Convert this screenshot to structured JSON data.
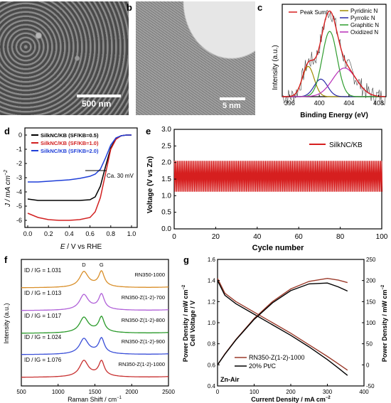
{
  "panel_a": {
    "letter": "a",
    "scale_bar": "500 nm"
  },
  "panel_b": {
    "letter": "b",
    "scale_bar": "5 nm"
  },
  "panel_c": {
    "letter": "c",
    "legend_left": [
      "Peak Sum"
    ],
    "legend_right": [
      "Pyridinic N",
      "Pyrrolic N",
      "Graphitic N",
      "Oxidized N"
    ],
    "colors": {
      "peak_sum": "#d61f1f",
      "pyridinic": "#a08a00",
      "pyrrolic": "#2a2aa8",
      "graphitic": "#2e9c2e",
      "oxidized": "#b82fb8",
      "raw": "#444444"
    }
  },
  "panel_d": {
    "letter": "d",
    "legend": [
      "SilkNC/KB (SF/KB=0.5)",
      "SilkNC/KB (SF/KB=1.0)",
      "SilkNC/KB (SF/KB=2.0)"
    ],
    "annotation": "Ca. 30 mV",
    "colors": [
      "#000000",
      "#d22020",
      "#1f3fd8"
    ]
  },
  "panel_e": {
    "letter": "e",
    "legend": "SilkNC/KB",
    "color": "#d61f1f"
  },
  "panel_f": {
    "letter": "f",
    "peak_labels": [
      "D",
      "G"
    ],
    "series": [
      {
        "name": "RN350-1000",
        "ratio": "1.031",
        "color": "#d98f2a"
      },
      {
        "name": "RN350-Z(1-2)-700",
        "ratio": "1.013",
        "color": "#b060d8"
      },
      {
        "name": "RN350-Z(1-2)-800",
        "ratio": "1.017",
        "color": "#2a9a2a"
      },
      {
        "name": "RN350-Z(1-2)-900",
        "ratio": "1.024",
        "color": "#3a4fd8"
      },
      {
        "name": "RN350-Z(1-2)-1000",
        "ratio": "1.076",
        "color": "#c83030"
      }
    ]
  },
  "panel_g": {
    "letter": "g",
    "legend": [
      "RN350-Z(1-2)-1000",
      "20% Pt/C"
    ],
    "annotation": "Zn-Air",
    "colors": [
      "#9b3a2a",
      "#000000"
    ]
  },
  "chart_data": [
    {
      "panel": "c",
      "type": "line",
      "xlabel": "Binding Energy (eV)",
      "ylabel": "Intensity (a.u.)",
      "xlim": [
        395,
        409
      ],
      "xticks": [
        396,
        400,
        404,
        408
      ],
      "x": [
        395,
        396,
        397,
        398,
        398.5,
        399,
        400,
        400.5,
        401,
        401.5,
        402,
        403,
        403.5,
        404,
        405,
        406,
        407,
        408,
        409
      ],
      "series": [
        {
          "name": "Peak Sum",
          "values": [
            0.02,
            0.05,
            0.2,
            0.45,
            0.55,
            0.5,
            0.6,
            0.8,
            0.95,
            0.98,
            0.85,
            0.55,
            0.45,
            0.38,
            0.25,
            0.14,
            0.07,
            0.03,
            0.01
          ]
        }
      ]
    },
    {
      "panel": "d",
      "type": "line",
      "xlabel": "E / V vs RHE",
      "ylabel": "J / mA cm-2",
      "xlim": [
        0.0,
        1.0
      ],
      "ylim": [
        -6.5,
        0.5
      ],
      "xticks": [
        "0.0",
        "0.2",
        "0.4",
        "0.6",
        "0.8",
        "1.0"
      ],
      "yticks": [
        "0",
        "-1",
        "-2",
        "-3",
        "-4",
        "-5",
        "-6"
      ],
      "x": [
        0.0,
        0.1,
        0.2,
        0.3,
        0.4,
        0.5,
        0.6,
        0.65,
        0.7,
        0.75,
        0.8,
        0.85,
        0.9,
        0.95,
        1.0
      ],
      "series": [
        {
          "name": "SilkNC/KB (SF/KB=0.5)",
          "values": [
            -4.5,
            -4.6,
            -4.6,
            -4.6,
            -4.6,
            -4.6,
            -4.55,
            -4.35,
            -3.6,
            -2.2,
            -0.9,
            -0.25,
            -0.05,
            0.0,
            0.0
          ]
        },
        {
          "name": "SilkNC/KB (SF/KB=1.0)",
          "values": [
            -5.5,
            -5.8,
            -5.95,
            -6.0,
            -6.0,
            -5.95,
            -5.8,
            -5.4,
            -4.4,
            -2.7,
            -1.0,
            -0.3,
            -0.05,
            0.0,
            0.0
          ]
        },
        {
          "name": "SilkNC/KB (SF/KB=2.0)",
          "values": [
            -3.3,
            -3.3,
            -3.25,
            -3.2,
            -3.15,
            -3.05,
            -2.9,
            -2.75,
            -2.4,
            -1.6,
            -0.7,
            -0.2,
            -0.05,
            0.0,
            0.0
          ]
        }
      ]
    },
    {
      "panel": "e",
      "type": "line",
      "xlabel": "Cycle number",
      "ylabel": "Voltage (V vs Zn)",
      "xlim": [
        0,
        100
      ],
      "ylim": [
        0.0,
        3.0
      ],
      "xticks": [
        "0",
        "20",
        "40",
        "60",
        "80",
        "100"
      ],
      "yticks": [
        "0.0",
        "0.5",
        "1.0",
        "1.5",
        "2.0",
        "2.5",
        "3.0"
      ],
      "series": [
        {
          "name": "SilkNC/KB",
          "charge_voltage": 2.05,
          "discharge_voltage": 1.12
        }
      ]
    },
    {
      "panel": "f",
      "type": "line",
      "xlabel": "Raman Shift / cm-1",
      "ylabel": "Intensity (a.u.)",
      "xlim": [
        500,
        2500
      ],
      "xticks": [
        "500",
        "1000",
        "1500",
        "2000",
        "2500"
      ],
      "peaks_cm-1": {
        "D": 1350,
        "G": 1590
      },
      "series": [
        {
          "name": "RN350-1000",
          "ID_IG": 1.031
        },
        {
          "name": "RN350-Z(1-2)-700",
          "ID_IG": 1.013
        },
        {
          "name": "RN350-Z(1-2)-800",
          "ID_IG": 1.017
        },
        {
          "name": "RN350-Z(1-2)-900",
          "ID_IG": 1.024
        },
        {
          "name": "RN350-Z(1-2)-1000",
          "ID_IG": 1.076
        }
      ]
    },
    {
      "panel": "g",
      "type": "line",
      "xlabel": "Current Density / mA cm-2",
      "ylabel": "Cell Voltage / V",
      "ylabel_right": "Power Density / mW cm-2",
      "xlim": [
        0,
        400
      ],
      "ylim": [
        0.4,
        1.6
      ],
      "ylim_right": [
        -50,
        250
      ],
      "xticks": [
        "0",
        "100",
        "200",
        "300",
        "400"
      ],
      "yticks": [
        "0.4",
        "0.6",
        "0.8",
        "1.0",
        "1.2",
        "1.4",
        "1.6"
      ],
      "yticks_right": [
        "-50",
        "0",
        "50",
        "100",
        "150",
        "200",
        "250"
      ],
      "x": [
        0,
        20,
        50,
        100,
        150,
        200,
        250,
        300,
        330,
        355
      ],
      "series": [
        {
          "name": "RN350-Z(1-2)-1000 voltage",
          "values": [
            1.42,
            1.28,
            1.2,
            1.1,
            1.0,
            0.9,
            0.79,
            0.68,
            0.61,
            0.55
          ]
        },
        {
          "name": "20% Pt/C voltage",
          "values": [
            1.4,
            1.26,
            1.18,
            1.08,
            0.98,
            0.88,
            0.77,
            0.65,
            0.57,
            0.5
          ]
        },
        {
          "name": "RN350-Z(1-2)-1000 power",
          "values": [
            0,
            26,
            60,
            110,
            150,
            180,
            198,
            205,
            201,
            195
          ]
        },
        {
          "name": "20% Pt/C power",
          "values": [
            0,
            25,
            59,
            108,
            147,
            176,
            192,
            194,
            185,
            175
          ]
        }
      ]
    }
  ]
}
